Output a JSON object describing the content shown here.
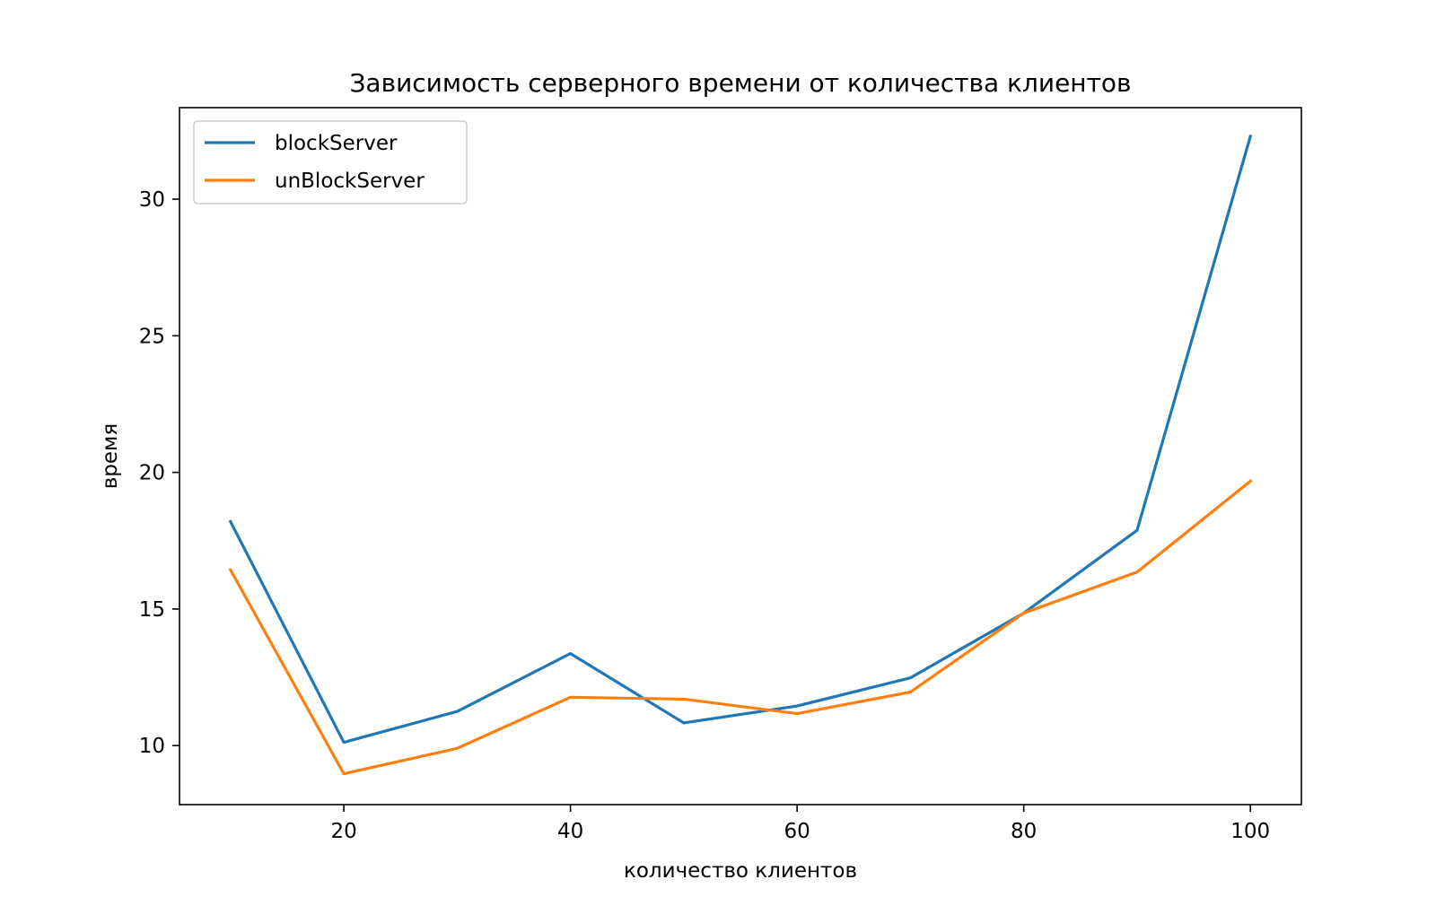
{
  "chart_data": {
    "type": "line",
    "title": "Зависимость серверного времени от количества клиентов",
    "xlabel": "количество клиентов",
    "ylabel": "время",
    "xlim": [
      5.5,
      104.5
    ],
    "ylim": [
      7.84,
      33.35
    ],
    "xticks": [
      20,
      40,
      60,
      80,
      100
    ],
    "yticks": [
      10,
      15,
      20,
      25,
      30
    ],
    "grid": false,
    "legend_position": "top-left",
    "x": [
      10,
      20,
      30,
      40,
      50,
      60,
      70,
      80,
      90,
      100
    ],
    "series": [
      {
        "name": "blockServer",
        "color": "#1f77b4",
        "values": [
          18.2,
          10.12,
          11.25,
          13.37,
          10.83,
          11.45,
          12.48,
          14.85,
          17.88,
          32.3
        ]
      },
      {
        "name": "unBlockServer",
        "color": "#ff7f0e",
        "values": [
          16.43,
          8.97,
          9.9,
          11.77,
          11.7,
          11.17,
          11.96,
          14.85,
          16.35,
          19.68
        ]
      }
    ]
  }
}
